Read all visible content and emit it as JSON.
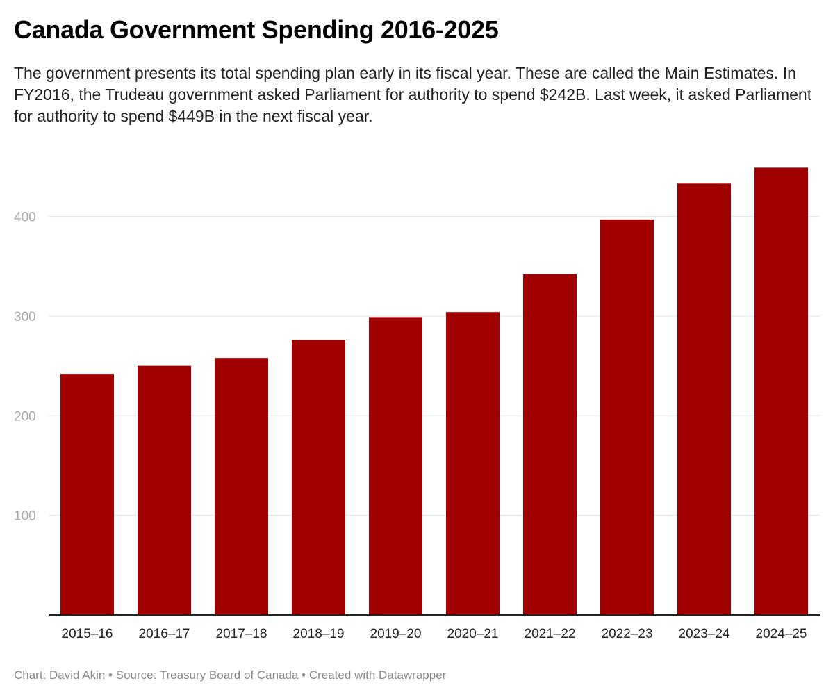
{
  "title": "Canada Government Spending 2016-2025",
  "subtitle": "The government presents its total spending plan early in its fiscal year. These are called the Main Estimates. In FY2016, the Trudeau government asked Parliament for authority to spend $242B. Last week, it asked Parliament for authority to spend $449B in the next fiscal year.",
  "footer": "Chart: David Akin • Source: Treasury Board of Canada • Created with Datawrapper",
  "chart_data": {
    "type": "bar",
    "categories": [
      "2015–16",
      "2016–17",
      "2017–18",
      "2018–19",
      "2019–20",
      "2020–21",
      "2021–22",
      "2022–23",
      "2023–24",
      "2024–25"
    ],
    "values": [
      242,
      250,
      258,
      276,
      299,
      304,
      342,
      397,
      433,
      449
    ],
    "title": "Canada Government Spending 2016-2025",
    "xlabel": "",
    "ylabel": "",
    "ylim": [
      0,
      450
    ],
    "yticks": [
      "100",
      "200",
      "300",
      "400"
    ],
    "grid": true,
    "bar_color": "#a00000"
  }
}
